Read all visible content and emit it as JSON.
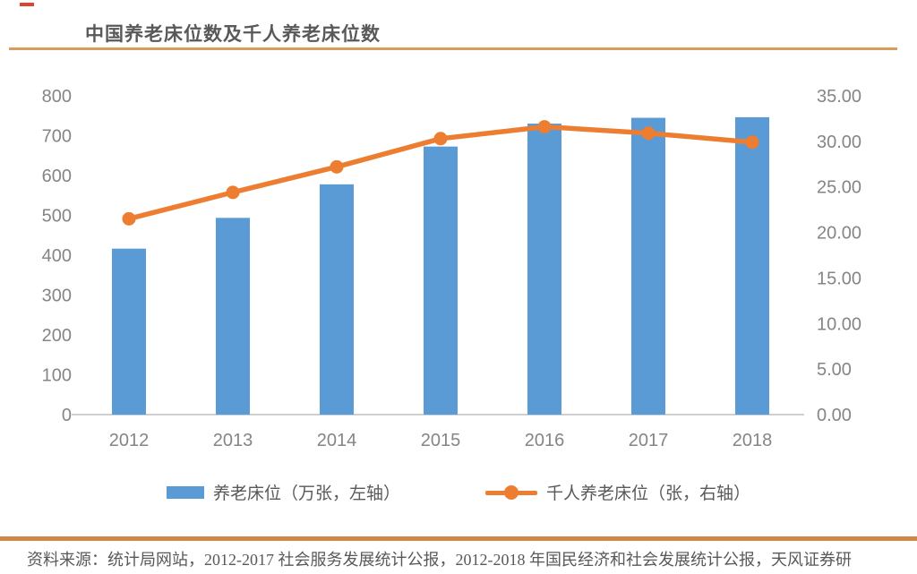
{
  "title": "中国养老床位数及千人养老床位数",
  "accents": {
    "title_underline_color": "#d99c5c",
    "footer_divider_color": "#ce8747",
    "annotation_dash_color": "#df4430",
    "bar_color": "#5b9bd5",
    "line_color": "#ed7d31",
    "axis_text_color": "#858585",
    "axis_line_color": "#d0d0d0"
  },
  "chart_data": {
    "type": "bar",
    "subtype": "bar+line dual axis",
    "title": "中国养老床位数及千人养老床位数",
    "categories": [
      "2012",
      "2013",
      "2014",
      "2015",
      "2016",
      "2017",
      "2018"
    ],
    "series": [
      {
        "name": "养老床位（万张，左轴）",
        "type": "bar",
        "axis": "left",
        "color": "#5b9bd5",
        "values": [
          416.5,
          493.7,
          577.8,
          672.7,
          730.2,
          744.8,
          746.3
        ]
      },
      {
        "name": "千人养老床位（张，右轴）",
        "type": "line",
        "axis": "right",
        "color": "#ed7d31",
        "values": [
          21.5,
          24.4,
          27.2,
          30.3,
          31.6,
          30.9,
          29.9
        ]
      }
    ],
    "left_axis": {
      "min": 0,
      "max": 800,
      "step": 100,
      "ticks": [
        "0",
        "100",
        "200",
        "300",
        "400",
        "500",
        "600",
        "700",
        "800"
      ]
    },
    "right_axis": {
      "min": 0,
      "max": 35,
      "step": 5,
      "ticks": [
        "0.00",
        "5.00",
        "10.00",
        "15.00",
        "20.00",
        "25.00",
        "30.00",
        "35.00"
      ]
    },
    "grid": false,
    "legend_position": "bottom"
  },
  "legend": {
    "items": [
      {
        "label": "养老床位（万张，左轴）",
        "marker": "bar",
        "color": "#5b9bd5"
      },
      {
        "label": "千人养老床位（张，右轴）",
        "marker": "line-dot",
        "color": "#ed7d31"
      }
    ]
  },
  "footer": {
    "source": "资料来源：统计局网站，2012-2017 社会服务发展统计公报，2012-2018 年国民经济和社会发展统计公报，天风证券研"
  }
}
